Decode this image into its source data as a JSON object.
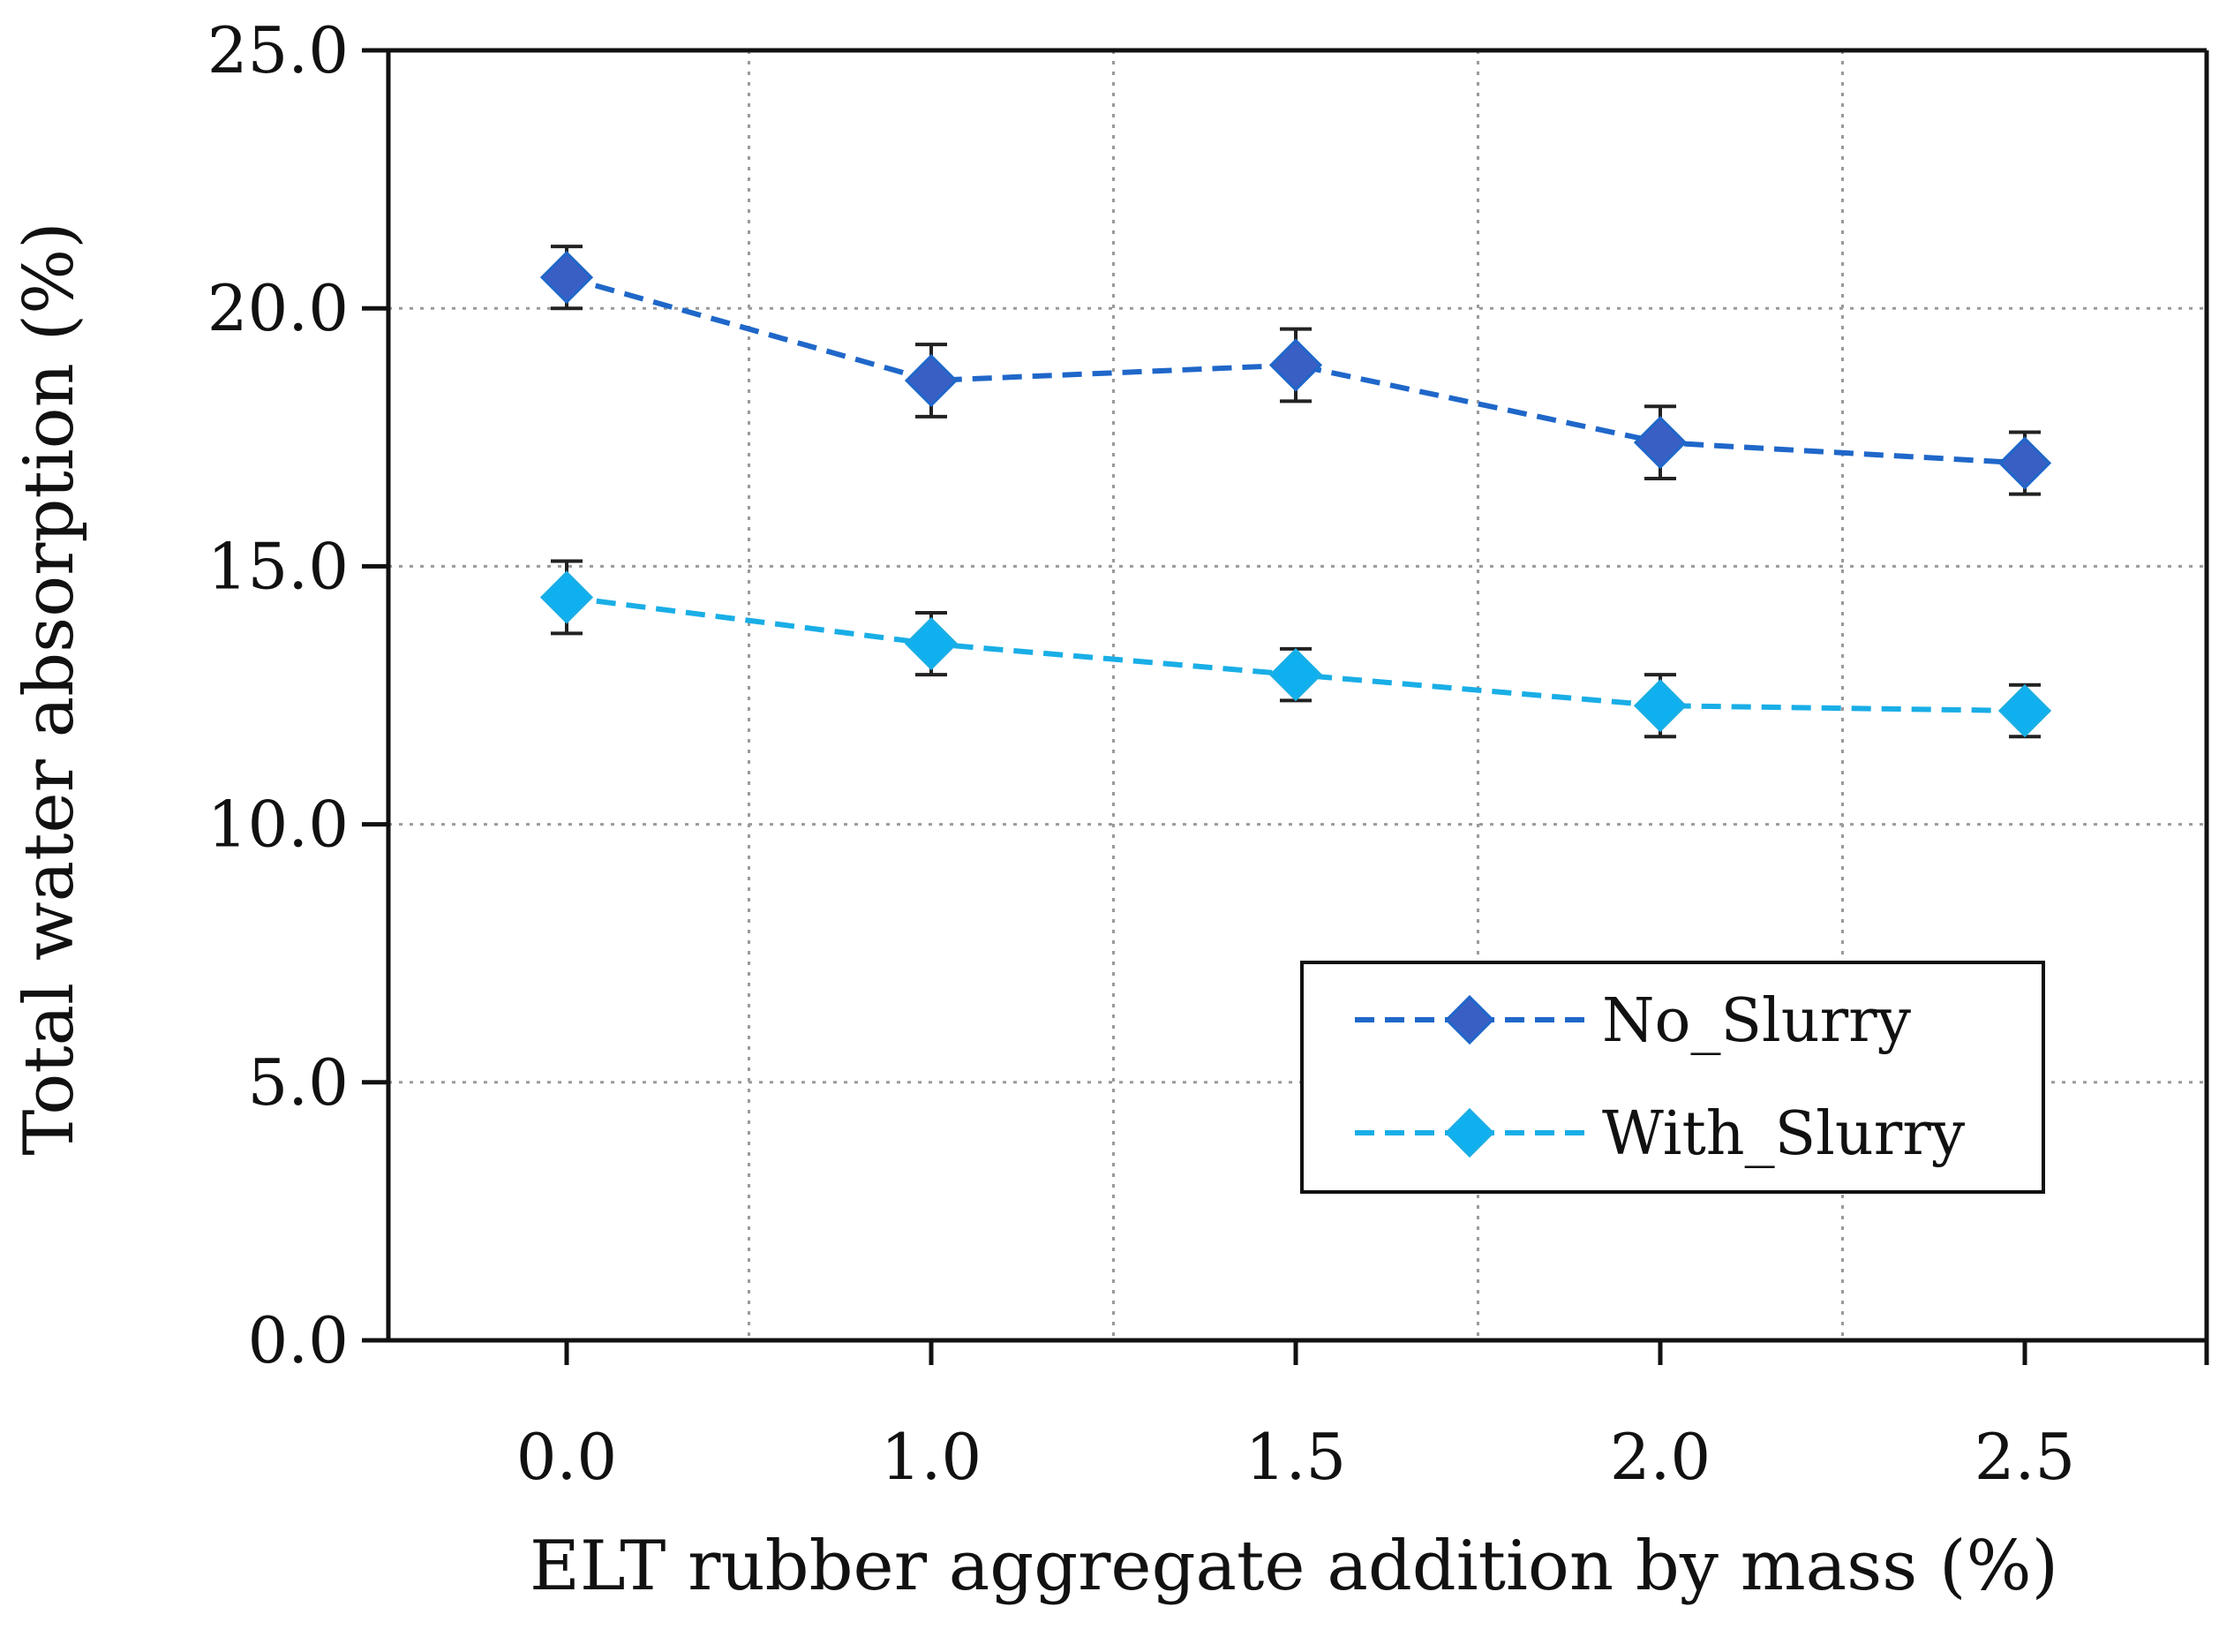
{
  "chart_data": {
    "type": "line",
    "title": "",
    "xlabel": "ELT rubber aggregate addition by mass (%)",
    "ylabel": "Total water absorption (%)",
    "categories": [
      "0.0",
      "1.0",
      "1.5",
      "2.0",
      "2.5"
    ],
    "yticks": [
      "0.0",
      "5.0",
      "10.0",
      "15.0",
      "20.0",
      "25.0"
    ],
    "ylim": [
      0,
      25
    ],
    "grid": true,
    "legend_position": "lower-right",
    "series": [
      {
        "name": "No_Slurry",
        "values": [
          20.6,
          18.6,
          18.9,
          17.4,
          17.0
        ],
        "errors": [
          0.6,
          0.7,
          0.7,
          0.7,
          0.6
        ],
        "color": "#1f67c9",
        "marker_fill": "#3a5fc4",
        "line_style": "dashed",
        "marker": "diamond"
      },
      {
        "name": "With_Slurry",
        "values": [
          14.4,
          13.5,
          12.9,
          12.3,
          12.2
        ],
        "errors": [
          0.7,
          0.6,
          0.5,
          0.6,
          0.5
        ],
        "color": "#19aee6",
        "marker_fill": "#0fb0ef",
        "line_style": "dashed",
        "marker": "diamond"
      }
    ]
  }
}
